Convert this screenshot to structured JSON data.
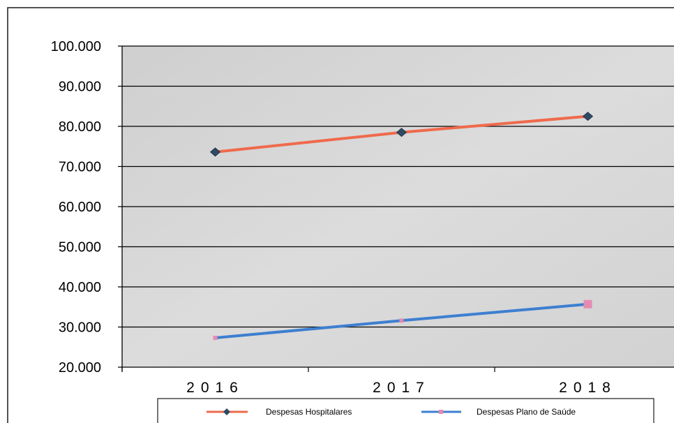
{
  "chart_data": {
    "type": "line",
    "categories": [
      "2016",
      "2017",
      "2018"
    ],
    "series": [
      {
        "name": "Despesas Hospitalares",
        "values": [
          73600,
          78500,
          82500
        ],
        "line_color": "#ef6a4c",
        "marker_color": "#2f4a63",
        "marker": "diamond"
      },
      {
        "name": "Despesas Plano de Saúde",
        "values": [
          27300,
          31600,
          35700
        ],
        "line_color": "#3d7fd0",
        "marker_color": "#e58bb2",
        "marker": "square"
      }
    ],
    "y_ticks": [
      "100.000",
      "90.000",
      "80.000",
      "70.000",
      "60.000",
      "50.000",
      "40.000",
      "30.000",
      "20.000"
    ],
    "ylim": [
      20000,
      100000
    ],
    "y_step": 10000,
    "grid": true,
    "plot_background": "#d9d9d9",
    "legend_position": "bottom"
  }
}
